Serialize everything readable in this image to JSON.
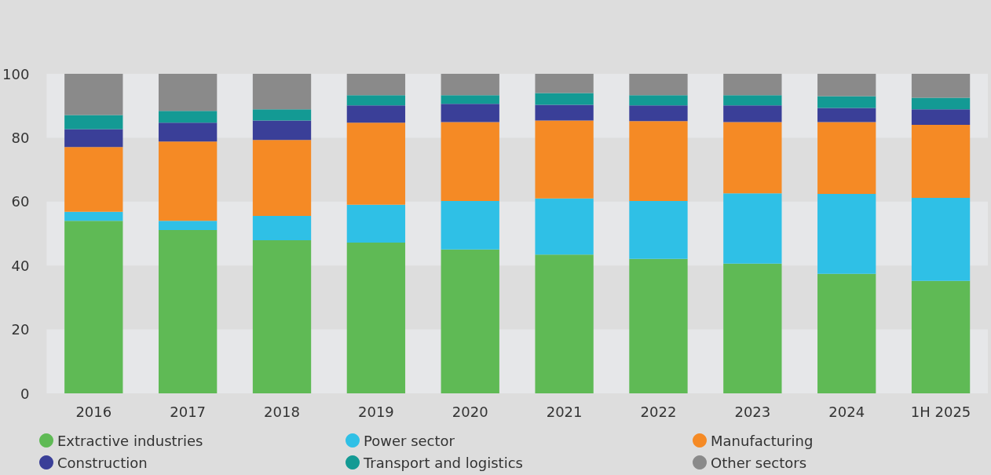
{
  "chart_data": {
    "type": "bar",
    "stacked": true,
    "categories": [
      "2016",
      "2017",
      "2018",
      "2019",
      "2020",
      "2021",
      "2022",
      "2023",
      "2024",
      "1H 2025"
    ],
    "series": [
      {
        "name": "Extractive industries",
        "color": "#5fba55",
        "values": [
          54.0,
          51.1,
          47.9,
          47.2,
          45.0,
          43.4,
          42.1,
          40.6,
          37.4,
          35.2
        ]
      },
      {
        "name": "Power sector",
        "color": "#2fc0e6",
        "values": [
          2.8,
          2.9,
          7.6,
          11.8,
          15.2,
          17.6,
          18.1,
          22.0,
          25.0,
          26.0
        ]
      },
      {
        "name": "Manufacturing",
        "color": "#f58a25",
        "values": [
          20.3,
          24.8,
          23.8,
          25.7,
          24.7,
          24.4,
          25.0,
          22.3,
          22.5,
          22.8
        ]
      },
      {
        "name": "Construction",
        "color": "#3a3f98",
        "values": [
          5.6,
          5.9,
          6.1,
          5.4,
          5.7,
          4.9,
          4.9,
          5.2,
          4.4,
          4.9
        ]
      },
      {
        "name": "Transport and logistics",
        "color": "#139a94",
        "values": [
          4.4,
          3.7,
          3.5,
          3.2,
          2.7,
          3.7,
          3.2,
          3.2,
          3.7,
          3.6
        ]
      },
      {
        "name": "Other sectors",
        "color": "#8a8a8a",
        "values": [
          12.9,
          11.6,
          11.1,
          6.7,
          6.7,
          6.0,
          6.7,
          6.7,
          7.0,
          7.5
        ]
      }
    ],
    "bands": [
      {
        "axis": "y",
        "from": 0,
        "to": 20,
        "color": "#e6e7e9"
      },
      {
        "axis": "y",
        "from": 40,
        "to": 60,
        "color": "#e6e7e9"
      },
      {
        "axis": "y",
        "from": 80,
        "to": 100,
        "color": "#e6e7e9"
      }
    ],
    "ylim": [
      0,
      100
    ],
    "yticks": [
      0,
      20,
      40,
      60,
      80,
      100
    ],
    "legend": "bottom"
  }
}
